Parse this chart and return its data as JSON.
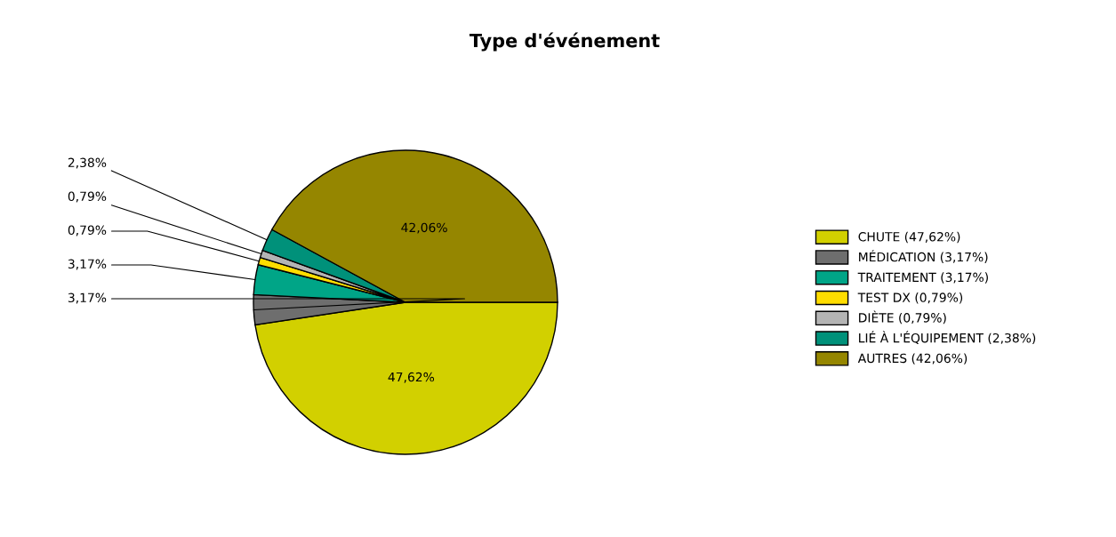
{
  "chart_data": {
    "type": "pie",
    "title": "Type d'événement",
    "categories": [
      "CHUTE (47,62%)",
      "MÉDICATION (3,17%)",
      "TRAITEMENT (3,17%)",
      "TEST DX (0,79%)",
      "DIÈTE (0,79%)",
      "LIÉ À L'ÉQUIPEMENT (2,38%)",
      "AUTRES (42,06%)"
    ],
    "values": [
      47.62,
      3.17,
      3.17,
      0.79,
      0.79,
      2.38,
      42.06
    ],
    "value_labels": [
      "47,62%",
      "3,17%",
      "3,17%",
      "0,79%",
      "0,79%",
      "2,38%",
      "42,06%"
    ],
    "colors": [
      "#d2d000",
      "#6e6e6e",
      "#00a587",
      "#ffdd00",
      "#b4b4b4",
      "#00917a",
      "#958600"
    ],
    "legend": "right"
  }
}
